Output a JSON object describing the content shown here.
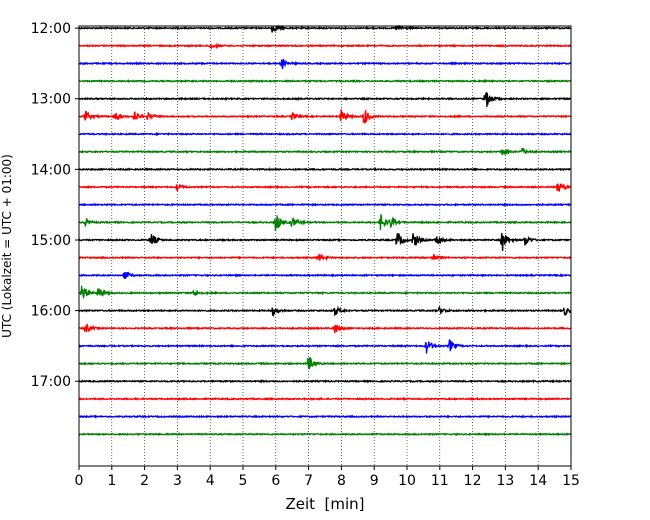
{
  "chart_data": {
    "type": "line",
    "xlabel": "Zeit  [min]",
    "ylabel": "UTC (Lokalzeit = UTC + 01:00)",
    "xlim": [
      0,
      15
    ],
    "x_ticks": [
      "0",
      "1",
      "2",
      "3",
      "4",
      "5",
      "6",
      "7",
      "8",
      "9",
      "10",
      "11",
      "12",
      "13",
      "14",
      "15"
    ],
    "y_ticks": [
      {
        "label": "12:00",
        "hour": 12.0
      },
      {
        "label": "13:00",
        "hour": 13.0
      },
      {
        "label": "14:00",
        "hour": 14.0
      },
      {
        "label": "15:00",
        "hour": 15.0
      },
      {
        "label": "16:00",
        "hour": 16.0
      },
      {
        "label": "17:00",
        "hour": 17.0
      }
    ],
    "ylim_hours": [
      11.97,
      18.2
    ],
    "grid": "vertical dotted at each minute",
    "trace_interval_min": 15,
    "color_cycle": [
      "#000000",
      "#ff0000",
      "#0000ff",
      "#008000"
    ],
    "traces": [
      {
        "start": "12:00",
        "events": [
          {
            "t": 5.9,
            "amp": 0.5
          },
          {
            "t": 9.7,
            "amp": 0.4
          }
        ]
      },
      {
        "start": "12:15",
        "events": [
          {
            "t": 4.0,
            "amp": 0.3
          }
        ]
      },
      {
        "start": "12:30",
        "events": [
          {
            "t": 6.2,
            "amp": 0.6
          }
        ]
      },
      {
        "start": "12:45",
        "events": []
      },
      {
        "start": "13:00",
        "events": [
          {
            "t": 12.4,
            "amp": 1.1
          }
        ]
      },
      {
        "start": "13:15",
        "events": [
          {
            "t": 0.2,
            "amp": 0.6
          },
          {
            "t": 1.1,
            "amp": 0.6
          },
          {
            "t": 1.7,
            "amp": 0.5
          },
          {
            "t": 2.1,
            "amp": 0.4
          },
          {
            "t": 6.5,
            "amp": 0.4
          },
          {
            "t": 8.0,
            "amp": 0.8
          },
          {
            "t": 8.7,
            "amp": 0.9
          }
        ]
      },
      {
        "start": "13:30",
        "events": []
      },
      {
        "start": "13:45",
        "events": [
          {
            "t": 12.9,
            "amp": 0.4
          },
          {
            "t": 13.5,
            "amp": 0.5
          }
        ]
      },
      {
        "start": "14:00",
        "events": []
      },
      {
        "start": "14:15",
        "events": [
          {
            "t": 3.0,
            "amp": 0.4
          },
          {
            "t": 14.6,
            "amp": 0.9
          }
        ]
      },
      {
        "start": "14:30",
        "events": []
      },
      {
        "start": "14:45",
        "events": [
          {
            "t": 0.2,
            "amp": 0.4
          },
          {
            "t": 6.0,
            "amp": 1.2
          },
          {
            "t": 6.5,
            "amp": 0.6
          },
          {
            "t": 9.2,
            "amp": 0.9
          },
          {
            "t": 9.5,
            "amp": 0.5
          }
        ]
      },
      {
        "start": "15:00",
        "events": [
          {
            "t": 2.2,
            "amp": 0.8
          },
          {
            "t": 9.7,
            "amp": 1.0
          },
          {
            "t": 10.2,
            "amp": 0.9
          },
          {
            "t": 10.9,
            "amp": 0.6
          },
          {
            "t": 12.9,
            "amp": 1.2
          },
          {
            "t": 13.6,
            "amp": 0.6
          }
        ]
      },
      {
        "start": "15:15",
        "events": [
          {
            "t": 7.3,
            "amp": 0.5
          },
          {
            "t": 10.8,
            "amp": 0.4
          }
        ]
      },
      {
        "start": "15:30",
        "events": [
          {
            "t": 1.4,
            "amp": 0.5
          }
        ]
      },
      {
        "start": "15:45",
        "events": [
          {
            "t": 0.1,
            "amp": 1.0
          },
          {
            "t": 0.6,
            "amp": 0.7
          },
          {
            "t": 3.5,
            "amp": 0.4
          }
        ]
      },
      {
        "start": "16:00",
        "events": [
          {
            "t": 5.9,
            "amp": 0.5
          },
          {
            "t": 7.8,
            "amp": 0.5
          },
          {
            "t": 11.0,
            "amp": 0.4
          },
          {
            "t": 14.8,
            "amp": 0.5
          }
        ]
      },
      {
        "start": "16:15",
        "events": [
          {
            "t": 0.2,
            "amp": 0.6
          },
          {
            "t": 7.8,
            "amp": 0.6
          }
        ]
      },
      {
        "start": "16:30",
        "events": [
          {
            "t": 10.6,
            "amp": 0.8
          },
          {
            "t": 11.3,
            "amp": 0.7
          }
        ]
      },
      {
        "start": "16:45",
        "events": [
          {
            "t": 7.0,
            "amp": 0.8
          }
        ]
      },
      {
        "start": "17:00",
        "events": []
      },
      {
        "start": "17:15",
        "events": []
      },
      {
        "start": "17:30",
        "events": []
      },
      {
        "start": "17:45",
        "events": []
      }
    ]
  }
}
